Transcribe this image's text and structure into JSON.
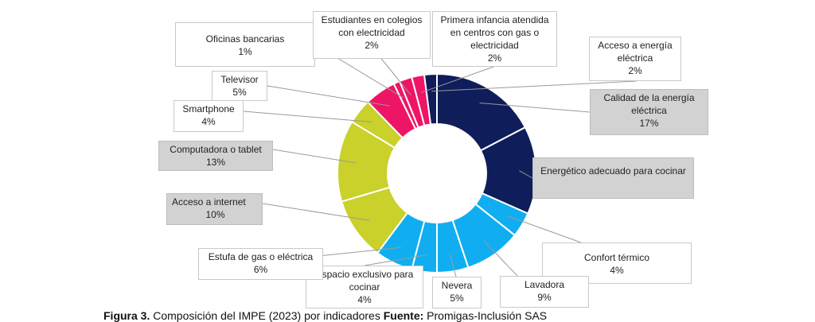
{
  "chart_data": {
    "type": "pie",
    "donut": true,
    "slices": [
      {
        "label": "Calidad de la energía eléctrica",
        "value": 17,
        "display": "17%",
        "color": "#0f1d5a"
      },
      {
        "label": "Energético adecuado para cocinar",
        "value": 14,
        "display": "",
        "color": "#0f1d5a"
      },
      {
        "label": "Confort térmico",
        "value": 4,
        "display": "4%",
        "color": "#10aef0"
      },
      {
        "label": "Lavadora",
        "value": 9,
        "display": "9%",
        "color": "#10aef0"
      },
      {
        "label": "Nevera",
        "value": 5,
        "display": "5%",
        "color": "#10aef0"
      },
      {
        "label": "Espacio exclusivo para cocinar",
        "value": 4,
        "display": "4%",
        "color": "#10aef0"
      },
      {
        "label": "Estufa de gas o eléctrica",
        "value": 6,
        "display": "6%",
        "color": "#10aef0"
      },
      {
        "label": "Acceso a internet",
        "value": 10,
        "display": "10%",
        "color": "#c9d12a"
      },
      {
        "label": "Computadora o tablet",
        "value": 13,
        "display": "13%",
        "color": "#c9d12a"
      },
      {
        "label": "Smartphone",
        "value": 4,
        "display": "4%",
        "color": "#c9d12a"
      },
      {
        "label": "Televisor",
        "value": 5,
        "display": "5%",
        "color": "#ee1566"
      },
      {
        "label": "Oficinas bancarias",
        "value": 1,
        "display": "1%",
        "color": "#ee1566"
      },
      {
        "label": "Estudiantes en colegios con electricidad",
        "value": 2,
        "display": "2%",
        "color": "#ee1566"
      },
      {
        "label": "Primera infancia atendida en centros con gas o electricidad",
        "value": 2,
        "display": "2%",
        "color": "#ee1566"
      },
      {
        "label": "Acceso a energía eléctrica",
        "value": 2,
        "display": "2%",
        "color": "#0f1d5a"
      }
    ]
  },
  "caption": {
    "figure": "Figura 3.",
    "text": " Composición del IMPE (2023) por indicadores ",
    "source_label": "Fuente:",
    "source": "  Promigas-Inclusión SAS"
  },
  "colors": {
    "navy": "#0f1d5a",
    "blue": "#10aef0",
    "lime": "#c9d12a",
    "pink": "#ee1566"
  }
}
